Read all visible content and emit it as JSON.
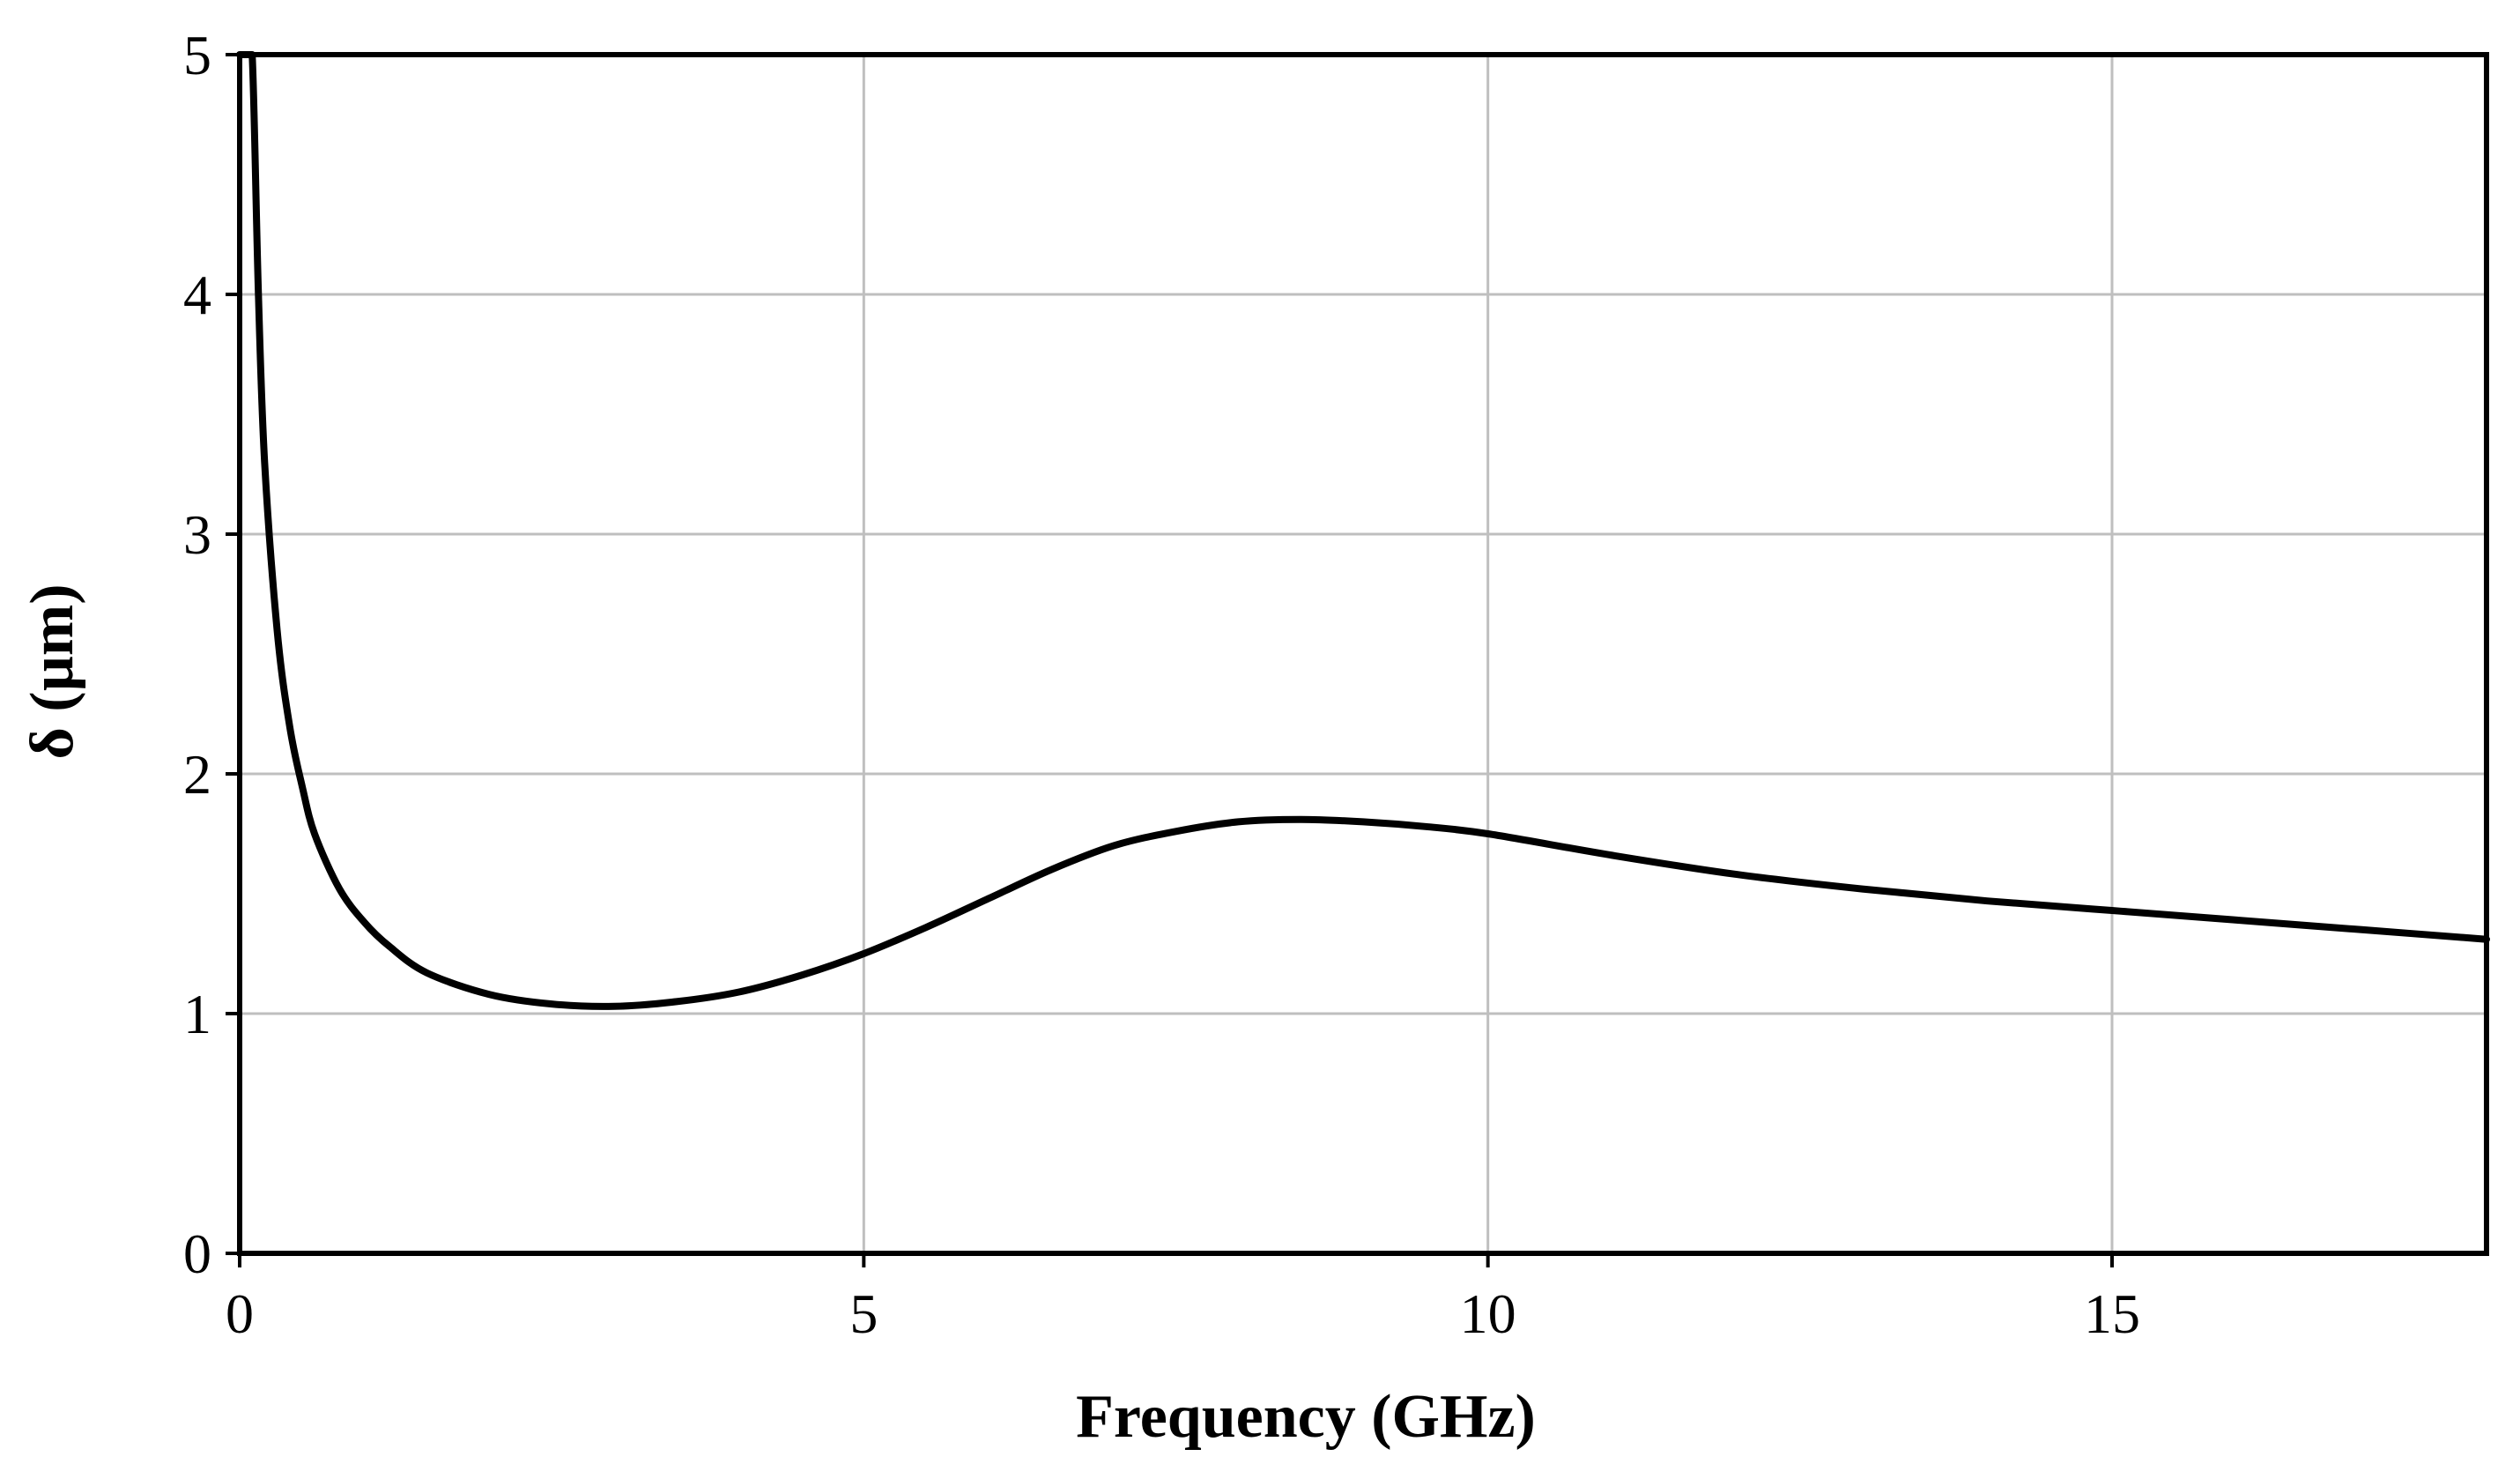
{
  "chart_data": {
    "type": "line",
    "title": "",
    "xlabel": "Frequency  (GHz)",
    "ylabel": "δ (µm)",
    "xlim": [
      0,
      18
    ],
    "ylim": [
      0,
      5
    ],
    "x_ticks": [
      0,
      5,
      10,
      15
    ],
    "x_tick_labels": [
      "0",
      "5",
      "10",
      "15"
    ],
    "y_ticks": [
      0,
      1,
      2,
      3,
      4,
      5
    ],
    "y_tick_labels": [
      "0",
      "1",
      "2",
      "3",
      "4",
      "5"
    ],
    "grid": true,
    "legend": "none",
    "colors": {
      "line": "#000000",
      "grid": "#bfbfbf",
      "frame": "#000000"
    },
    "series": [
      {
        "x": [
          0.0,
          0.05,
          0.1,
          0.15,
          0.2,
          0.3,
          0.4,
          0.5,
          0.6,
          0.8,
          1.0,
          1.2,
          1.5,
          2.0,
          2.5,
          3.0,
          3.5,
          4.0,
          4.5,
          5.0,
          5.5,
          6.0,
          6.5,
          7.0,
          7.5,
          8.0,
          8.5,
          9.0,
          9.5,
          10.0,
          11.0,
          12.0,
          13.0,
          14.0,
          15.0,
          16.0,
          17.0,
          18.0
        ],
        "values": [
          5.0,
          5.0,
          5.0,
          4.0,
          3.3,
          2.6,
          2.2,
          1.95,
          1.75,
          1.52,
          1.38,
          1.28,
          1.17,
          1.08,
          1.04,
          1.03,
          1.05,
          1.09,
          1.16,
          1.25,
          1.36,
          1.48,
          1.6,
          1.7,
          1.76,
          1.8,
          1.81,
          1.8,
          1.78,
          1.75,
          1.66,
          1.58,
          1.52,
          1.47,
          1.43,
          1.39,
          1.35,
          1.31
        ]
      }
    ]
  }
}
